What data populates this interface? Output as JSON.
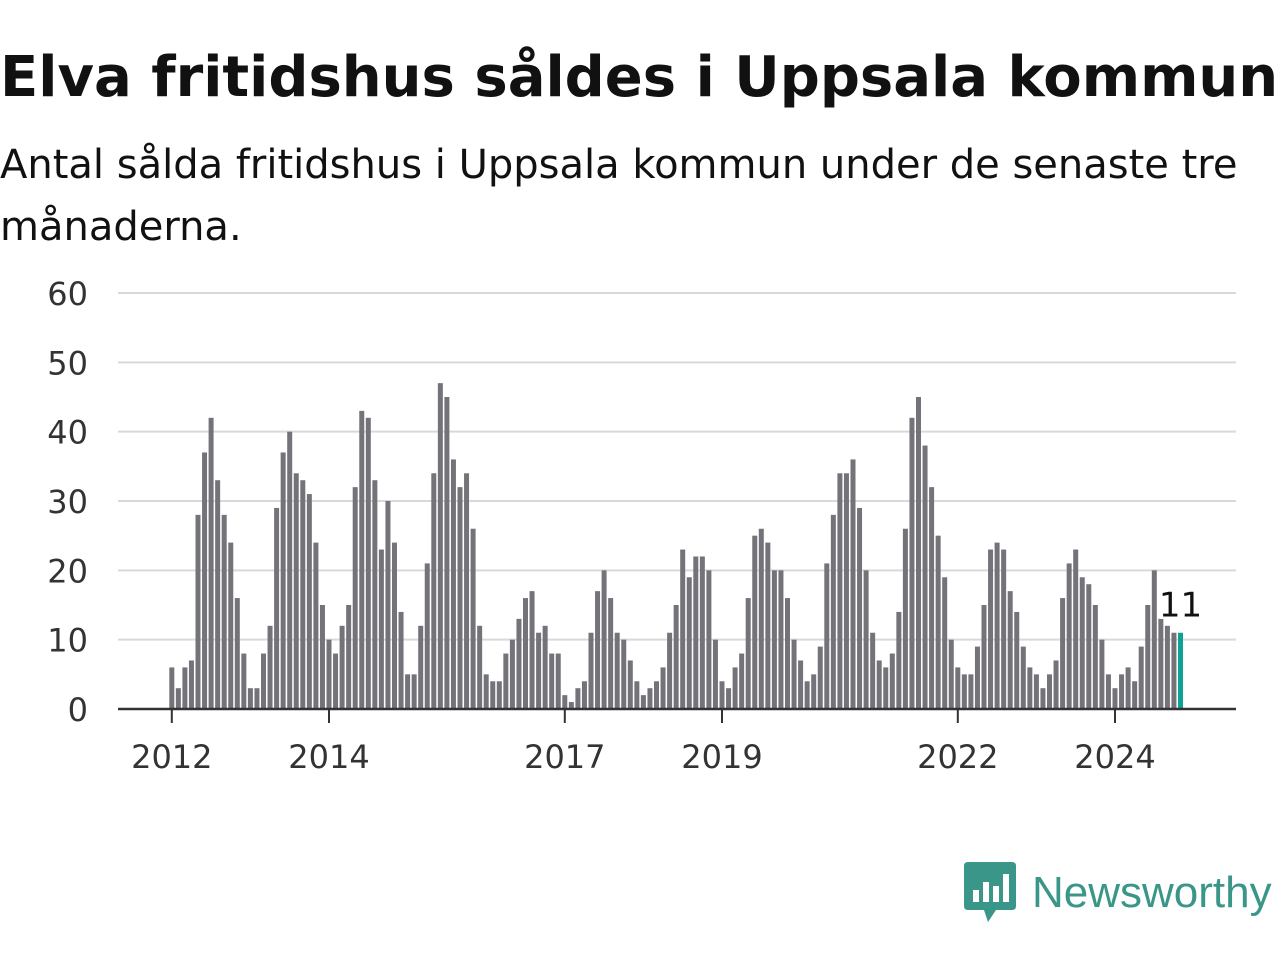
{
  "title": "Elva fritidshus såldes i Uppsala kommun",
  "subtitle": "Antal sålda fritidshus i Uppsala kommun under de senaste tre månaderna.",
  "brand": {
    "name": "Newsworthy",
    "icon": "bar-chart-speech-bubble-icon",
    "color": "#3a9688"
  },
  "chart_data": {
    "type": "bar",
    "title": "",
    "xlabel": "",
    "ylabel": "",
    "ylim": [
      0,
      60
    ],
    "yticks": [
      "0",
      "10",
      "20",
      "30",
      "40",
      "50",
      "60"
    ],
    "x_start": "2012-01",
    "frequency": "monthly",
    "xtick_labels": [
      {
        "label": "2012",
        "date": "2012-01"
      },
      {
        "label": "2014",
        "date": "2014-01"
      },
      {
        "label": "2017",
        "date": "2017-01"
      },
      {
        "label": "2019",
        "date": "2019-01"
      },
      {
        "label": "2022",
        "date": "2022-01"
      },
      {
        "label": "2024",
        "date": "2024-01"
      }
    ],
    "values": [
      6,
      3,
      6,
      7,
      28,
      37,
      42,
      33,
      28,
      24,
      16,
      8,
      3,
      3,
      8,
      12,
      29,
      37,
      40,
      34,
      33,
      31,
      24,
      15,
      10,
      8,
      12,
      15,
      32,
      43,
      42,
      33,
      23,
      30,
      24,
      14,
      5,
      5,
      12,
      21,
      34,
      47,
      45,
      36,
      32,
      34,
      26,
      12,
      5,
      4,
      4,
      8,
      10,
      13,
      16,
      17,
      11,
      12,
      8,
      8,
      2,
      1,
      3,
      4,
      11,
      17,
      20,
      16,
      11,
      10,
      7,
      4,
      2,
      3,
      4,
      6,
      11,
      15,
      23,
      19,
      22,
      22,
      20,
      10,
      4,
      3,
      6,
      8,
      16,
      25,
      26,
      24,
      20,
      20,
      16,
      10,
      7,
      4,
      5,
      9,
      21,
      28,
      34,
      34,
      36,
      29,
      20,
      11,
      7,
      6,
      8,
      14,
      26,
      42,
      45,
      38,
      32,
      25,
      19,
      10,
      6,
      5,
      5,
      9,
      15,
      23,
      24,
      23,
      17,
      14,
      9,
      6,
      5,
      3,
      5,
      7,
      16,
      21,
      23,
      19,
      18,
      15,
      10,
      5,
      3,
      5,
      6,
      4,
      9,
      15,
      20,
      13,
      12,
      11,
      11
    ],
    "last_value_label": "11",
    "bar_color": "#75737a",
    "highlight_color": "#10a196",
    "grid": true,
    "legend": "none"
  }
}
